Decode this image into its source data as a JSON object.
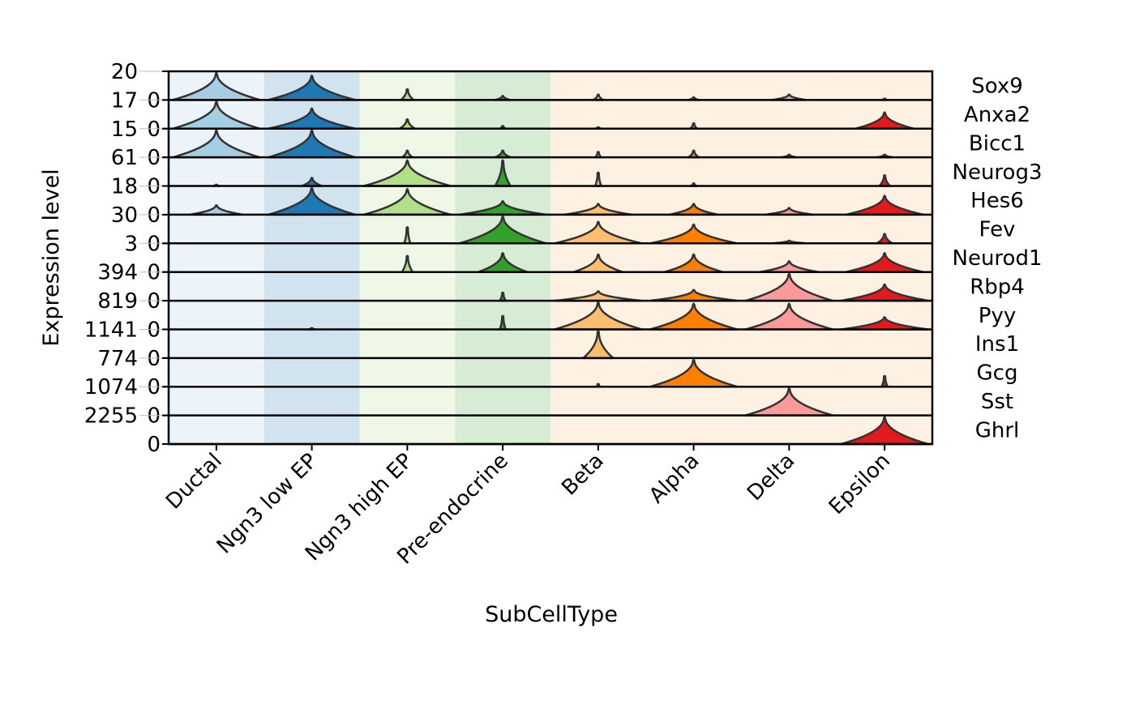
{
  "chart_data": {
    "type": "stacked-violin",
    "xlabel": "SubCellType",
    "ylabel": "Expression level",
    "categories": [
      "Ductal",
      "Ngn3 low EP",
      "Ngn3 high EP",
      "Pre-endocrine",
      "Beta",
      "Alpha",
      "Delta",
      "Epsilon"
    ],
    "category_colors": [
      "#a6cee3",
      "#1f78b4",
      "#b2df8a",
      "#33a02c",
      "#fdbf6f",
      "#ff7f00",
      "#fb9a99",
      "#e31a1c"
    ],
    "background_colors": [
      "#edf4f9",
      "#d2e3f0",
      "#eff7e7",
      "#d6ecd5",
      "#fff1e2",
      "#fff1e2",
      "#fff1e2",
      "#fff1e2"
    ],
    "genes": [
      {
        "name": "Sox9",
        "max": "20",
        "min": "0",
        "violins": [
          [
            1.0,
            0.9
          ],
          [
            0.9,
            0.9
          ],
          [
            0.4,
            0.12
          ],
          [
            0.15,
            0.15
          ],
          [
            0.2,
            0.1
          ],
          [
            0.1,
            0.1
          ],
          [
            0.2,
            0.35
          ],
          [
            0.05,
            0.05
          ]
        ]
      },
      {
        "name": "Anxa2",
        "max": "17",
        "min": "0",
        "violins": [
          [
            1.0,
            0.9
          ],
          [
            0.75,
            0.9
          ],
          [
            0.35,
            0.15
          ],
          [
            0.1,
            0.05
          ],
          [
            0.05,
            0.05
          ],
          [
            0.2,
            0.06
          ],
          [
            0,
            0
          ],
          [
            0.6,
            0.6
          ]
        ]
      },
      {
        "name": "Bicc1",
        "max": "15",
        "min": "0",
        "violins": [
          [
            1.0,
            0.9
          ],
          [
            1.0,
            0.9
          ],
          [
            0.25,
            0.1
          ],
          [
            0.25,
            0.15
          ],
          [
            0.2,
            0.05
          ],
          [
            0.25,
            0.1
          ],
          [
            0.1,
            0.15
          ],
          [
            0.1,
            0.15
          ]
        ]
      },
      {
        "name": "Neurog3",
        "max": "61",
        "min": "0",
        "violins": [
          [
            0.05,
            0.05
          ],
          [
            0.3,
            0.2
          ],
          [
            0.95,
            0.9
          ],
          [
            0.95,
            0.15
          ],
          [
            0.5,
            0.05
          ],
          [
            0.1,
            0.05
          ],
          [
            0,
            0
          ],
          [
            0.4,
            0.1
          ]
        ]
      },
      {
        "name": "Hes6",
        "max": "18",
        "min": "0",
        "violins": [
          [
            0.35,
            0.55
          ],
          [
            1.0,
            0.9
          ],
          [
            0.95,
            0.9
          ],
          [
            0.5,
            0.9
          ],
          [
            0.4,
            0.7
          ],
          [
            0.4,
            0.5
          ],
          [
            0.25,
            0.5
          ],
          [
            0.7,
            0.8
          ]
        ]
      },
      {
        "name": "Fev",
        "max": "30",
        "min": "0",
        "violins": [
          [
            0,
            0
          ],
          [
            0,
            0
          ],
          [
            0.6,
            0.05
          ],
          [
            1.0,
            0.9
          ],
          [
            0.8,
            0.9
          ],
          [
            0.7,
            0.9
          ],
          [
            0.1,
            0.35
          ],
          [
            0.35,
            0.15
          ]
        ]
      },
      {
        "name": "Neurod1",
        "max": "3",
        "min": "0",
        "violins": [
          [
            0,
            0
          ],
          [
            0,
            0
          ],
          [
            0.6,
            0.1
          ],
          [
            0.7,
            0.5
          ],
          [
            0.65,
            0.5
          ],
          [
            0.65,
            0.6
          ],
          [
            0.4,
            0.6
          ],
          [
            0.7,
            0.8
          ]
        ]
      },
      {
        "name": "Rbp4",
        "max": "394",
        "min": "0",
        "violins": [
          [
            0,
            0
          ],
          [
            0,
            0
          ],
          [
            0,
            0
          ],
          [
            0.3,
            0.05
          ],
          [
            0.35,
            0.9
          ],
          [
            0.4,
            0.9
          ],
          [
            1.0,
            0.9
          ],
          [
            0.6,
            0.9
          ]
        ]
      },
      {
        "name": "Pyy",
        "max": "819",
        "min": "0",
        "violins": [
          [
            0,
            0
          ],
          [
            0.05,
            0.05
          ],
          [
            0,
            0
          ],
          [
            0.5,
            0.05
          ],
          [
            1.0,
            0.9
          ],
          [
            0.95,
            0.9
          ],
          [
            0.95,
            0.9
          ],
          [
            0.45,
            0.9
          ]
        ]
      },
      {
        "name": "Ins1",
        "max": "1141",
        "min": "0",
        "violins": [
          [
            0,
            0
          ],
          [
            0,
            0
          ],
          [
            0,
            0
          ],
          [
            0,
            0
          ],
          [
            1.0,
            0.3
          ],
          [
            0,
            0
          ],
          [
            0,
            0
          ],
          [
            0,
            0
          ]
        ]
      },
      {
        "name": "Gcg",
        "max": "774",
        "min": "0",
        "violins": [
          [
            0,
            0
          ],
          [
            0,
            0
          ],
          [
            0,
            0
          ],
          [
            0,
            0
          ],
          [
            0.1,
            0.03
          ],
          [
            1.0,
            0.9
          ],
          [
            0,
            0
          ],
          [
            0.4,
            0.05
          ]
        ]
      },
      {
        "name": "Sst",
        "max": "1074",
        "min": "0",
        "violins": [
          [
            0,
            0
          ],
          [
            0,
            0
          ],
          [
            0,
            0
          ],
          [
            0,
            0
          ],
          [
            0,
            0
          ],
          [
            0,
            0
          ],
          [
            1.0,
            0.9
          ],
          [
            0,
            0
          ]
        ]
      },
      {
        "name": "Ghrl",
        "max": "2255",
        "min": "0",
        "violins": [
          [
            0,
            0
          ],
          [
            0,
            0
          ],
          [
            0,
            0
          ],
          [
            0,
            0
          ],
          [
            0,
            0
          ],
          [
            0,
            0
          ],
          [
            0,
            0
          ],
          [
            1.0,
            0.9
          ]
        ]
      }
    ]
  }
}
